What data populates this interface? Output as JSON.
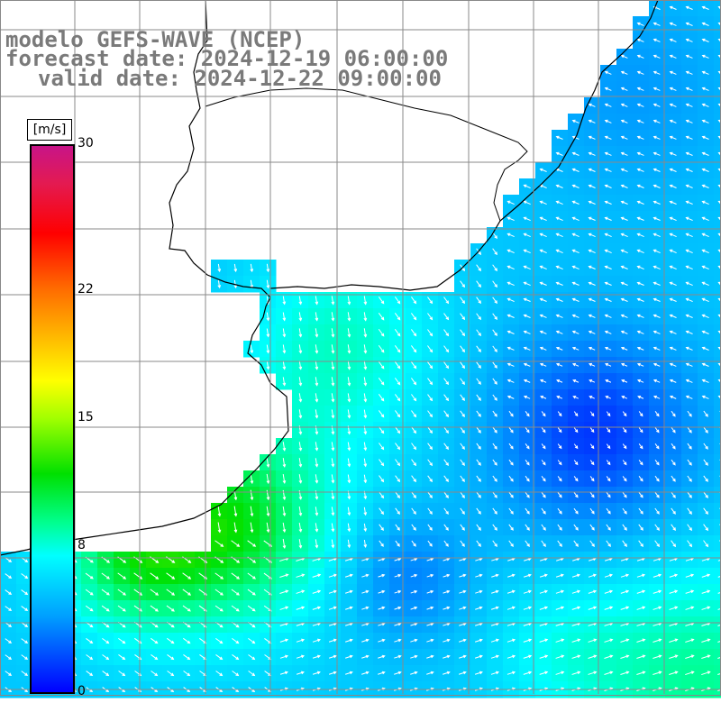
{
  "title": {
    "line1": "modelo GEFS-WAVE (NCEP)",
    "line2": "forecast date: 2024-12-19 06:00:00",
    "line3": "valid date: 2024-12-22 09:00:00"
  },
  "colorbar": {
    "unit": "[m/s]",
    "labels": [
      {
        "text": "30",
        "value": 30
      },
      {
        "text": "22",
        "value": 22
      },
      {
        "text": "15",
        "value": 15
      },
      {
        "text": "8",
        "value": 8
      },
      {
        "text": "0",
        "value": 0
      }
    ]
  },
  "map": {
    "type": "wind-field",
    "land_color": "#ffffff",
    "grid_color": "#888888"
  }
}
